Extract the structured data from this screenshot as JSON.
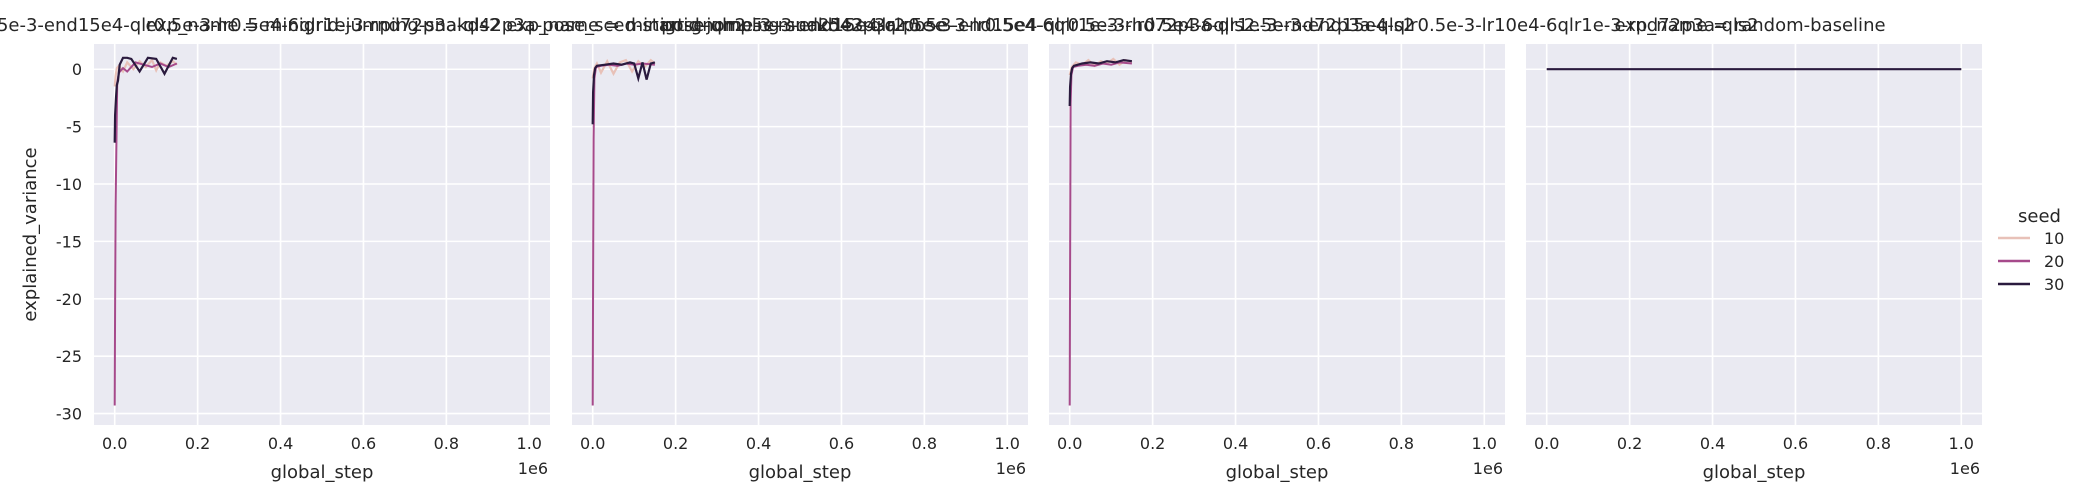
{
  "chart_data": [
    {
      "type": "line",
      "title": "uploading-double_sced-start-gnome-3-mud25e3-qlr2.5e-3-end15e4-qlr0.5e-3-lr0.5e4-6qlr1e-3-rnd72p3a-qls2 exp_name = minigrid-jumping-snakd42p3a-pose",
      "xlabel": "global_step",
      "ylabel": "explained_variance",
      "x_offset_label": "1e6",
      "xlim": [
        -0.05,
        1.05
      ],
      "ylim": [
        -31,
        2.2
      ],
      "xticks": [
        "0.0",
        "0.2",
        "0.4",
        "0.6",
        "0.8",
        "1.0"
      ],
      "yticks": [
        "0",
        "-5",
        "-10",
        "-15",
        "-20",
        "-25",
        "-30"
      ],
      "grid": true,
      "series": [
        {
          "name": "10",
          "color": "#e8c1b8",
          "x": [
            0,
            0.002,
            0.005,
            0.01,
            0.02,
            0.03,
            0.045,
            0.06,
            0.075,
            0.09,
            0.1,
            0.11,
            0.125,
            0.14,
            0.15
          ],
          "y": [
            -1.5,
            -0.6,
            0.1,
            0.3,
            -0.2,
            0.6,
            0.0,
            0.7,
            0.2,
            0.8,
            -0.1,
            0.6,
            0.3,
            0.7,
            0.4
          ]
        },
        {
          "name": "20",
          "color": "#a64a8b",
          "x": [
            0,
            0.001,
            0.002,
            0.004,
            0.006,
            0.01,
            0.02,
            0.03,
            0.05,
            0.07,
            0.09,
            0.11,
            0.13,
            0.15
          ],
          "y": [
            -29.3,
            -20.5,
            -12.0,
            -6.5,
            -1.2,
            -0.3,
            0.1,
            -0.2,
            0.6,
            0.4,
            0.2,
            0.5,
            0.2,
            0.5
          ]
        },
        {
          "name": "30",
          "color": "#2a1a3e",
          "x": [
            0,
            0.001,
            0.003,
            0.005,
            0.008,
            0.012,
            0.02,
            0.03,
            0.04,
            0.06,
            0.08,
            0.1,
            0.12,
            0.14,
            0.15
          ],
          "y": [
            -6.4,
            -4.0,
            -2.5,
            -1.4,
            -1.0,
            0.4,
            1.0,
            1.0,
            0.9,
            -0.2,
            1.0,
            0.9,
            -0.4,
            1.0,
            0.9
          ]
        }
      ]
    },
    {
      "type": "line",
      "title": "exp_name = minigrid-jumping-snakd42p3a-pose_sced-start-gnome-3-mud25e3-qlr2.5e-3-end15e4-qlr0.5e-3-lr0.5e4-6qlr1e-3-rnd72p3a-qls2",
      "xlabel": "global_step",
      "ylabel": "",
      "x_offset_label": "1e6",
      "xlim": [
        -0.05,
        1.05
      ],
      "ylim": [
        -31,
        2.2
      ],
      "xticks": [
        "0.0",
        "0.2",
        "0.4",
        "0.6",
        "0.8",
        "1.0"
      ],
      "yticks": [],
      "grid": true,
      "series": [
        {
          "name": "10",
          "color": "#e8c1b8",
          "x": [
            0,
            0.004,
            0.01,
            0.02,
            0.035,
            0.05,
            0.065,
            0.08,
            0.095,
            0.11,
            0.125,
            0.14,
            0.15
          ],
          "y": [
            -0.8,
            0.1,
            0.5,
            -0.3,
            0.7,
            -0.4,
            0.6,
            0.8,
            -0.2,
            0.7,
            0.2,
            0.8,
            0.5
          ]
        },
        {
          "name": "20",
          "color": "#a64a8b",
          "x": [
            0,
            0.001,
            0.002,
            0.004,
            0.008,
            0.02,
            0.04,
            0.06,
            0.08,
            0.1,
            0.12,
            0.15
          ],
          "y": [
            -29.3,
            -18.0,
            -6.0,
            -0.8,
            0.2,
            0.3,
            0.4,
            0.3,
            0.5,
            0.4,
            0.5,
            0.4
          ]
        },
        {
          "name": "30",
          "color": "#2a1a3e",
          "x": [
            0,
            0.001,
            0.003,
            0.006,
            0.01,
            0.03,
            0.05,
            0.07,
            0.09,
            0.1,
            0.11,
            0.12,
            0.13,
            0.14,
            0.15
          ],
          "y": [
            -4.8,
            -2.0,
            -0.5,
            0.1,
            0.3,
            0.4,
            0.5,
            0.4,
            0.6,
            0.5,
            -0.8,
            0.6,
            -0.9,
            0.5,
            0.6
          ]
        }
      ]
    },
    {
      "type": "line",
      "title": "pose-qlr2.5e-3-end15e4-qlr0.5e-3-lr0.5e4-6qlr1e-3-rnd72p3a-qls2.5e-3-end15e4-qlr0.5e-3-lr10e4-6qlr1e-3-rnd72p3a-qls2",
      "xlabel": "global_step",
      "ylabel": "",
      "x_offset_label": "1e6",
      "xlim": [
        -0.05,
        1.05
      ],
      "ylim": [
        -31,
        2.2
      ],
      "xticks": [
        "0.0",
        "0.2",
        "0.4",
        "0.6",
        "0.8",
        "1.0"
      ],
      "yticks": [],
      "grid": true,
      "series": [
        {
          "name": "10",
          "color": "#e8c1b8",
          "x": [
            0,
            0.005,
            0.015,
            0.03,
            0.045,
            0.06,
            0.075,
            0.09,
            0.105,
            0.12,
            0.135,
            0.15
          ],
          "y": [
            -0.5,
            0.2,
            0.6,
            0.4,
            0.8,
            0.3,
            0.7,
            0.5,
            0.9,
            0.4,
            0.8,
            0.6
          ]
        },
        {
          "name": "20",
          "color": "#a64a8b",
          "x": [
            0,
            0.001,
            0.002,
            0.004,
            0.008,
            0.02,
            0.04,
            0.06,
            0.08,
            0.1,
            0.12,
            0.15
          ],
          "y": [
            -29.3,
            -17.0,
            -3.0,
            -0.5,
            0.2,
            0.3,
            0.4,
            0.3,
            0.5,
            0.4,
            0.6,
            0.5
          ]
        },
        {
          "name": "30",
          "color": "#2a1a3e",
          "x": [
            0,
            0.001,
            0.003,
            0.006,
            0.01,
            0.03,
            0.05,
            0.07,
            0.09,
            0.11,
            0.13,
            0.15
          ],
          "y": [
            -3.2,
            -1.5,
            -0.4,
            0.1,
            0.3,
            0.5,
            0.6,
            0.5,
            0.7,
            0.6,
            0.8,
            0.7
          ]
        }
      ]
    },
    {
      "type": "line",
      "title": "exp_name = random-baseline",
      "xlabel": "global_step",
      "ylabel": "",
      "x_offset_label": "1e6",
      "xlim": [
        -0.05,
        1.05
      ],
      "ylim": [
        -31,
        2.2
      ],
      "xticks": [
        "0.0",
        "0.2",
        "0.4",
        "0.6",
        "0.8",
        "1.0"
      ],
      "yticks": [],
      "grid": true,
      "series": [
        {
          "name": "30",
          "color": "#2a1a3e",
          "x": [
            0,
            1.0
          ],
          "y": [
            0,
            0
          ]
        }
      ]
    }
  ],
  "legend": {
    "title": "seed",
    "placement": "right",
    "entries": [
      {
        "label": "10",
        "color": "#e8c1b8"
      },
      {
        "label": "20",
        "color": "#a64a8b"
      },
      {
        "label": "30",
        "color": "#2a1a3e"
      }
    ]
  }
}
